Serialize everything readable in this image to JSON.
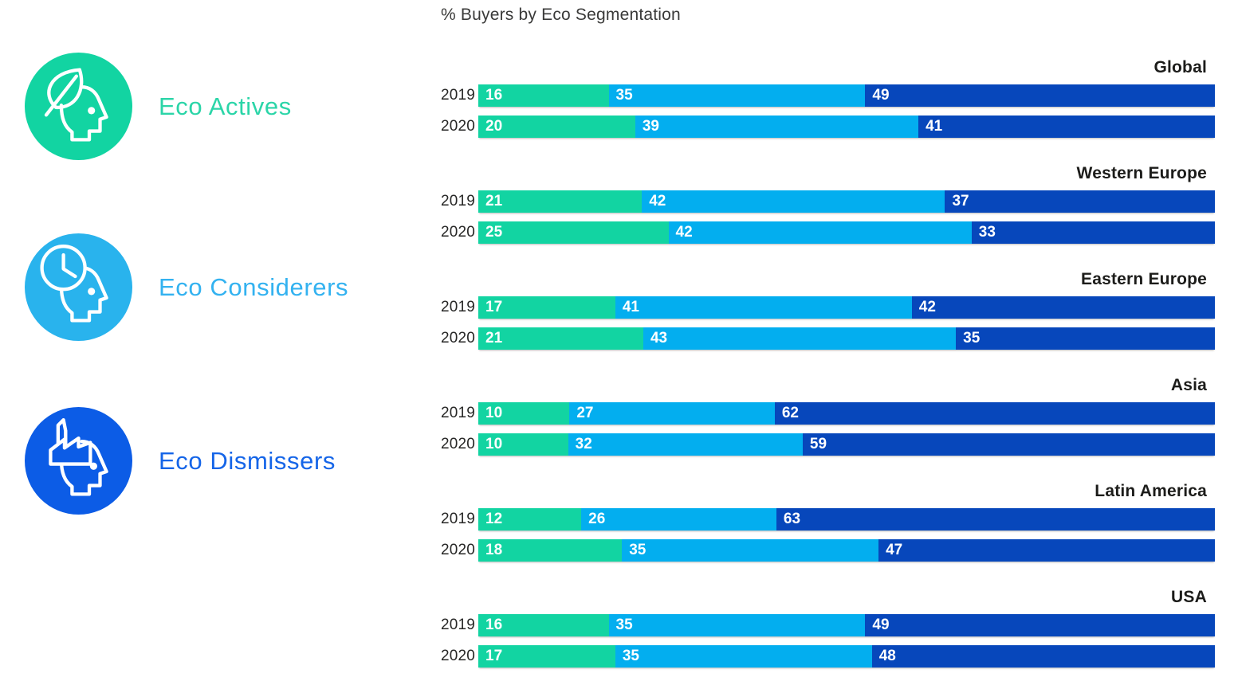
{
  "legend": {
    "items": [
      {
        "id": "eco-actives",
        "label": "Eco Actives",
        "circle_color": "#12D4A2",
        "text_color": "#2BD5A8",
        "icon": "leaf-head-icon"
      },
      {
        "id": "eco-considerers",
        "label": "Eco Considerers",
        "circle_color": "#29B3ED",
        "text_color": "#33B2F0",
        "icon": "clock-head-icon"
      },
      {
        "id": "eco-dismissers",
        "label": "Eco Dismissers",
        "circle_color": "#0C5CE6",
        "text_color": "#1565E8",
        "icon": "factory-head-icon"
      }
    ]
  },
  "chart_data": {
    "type": "bar",
    "orientation": "horizontal",
    "stacked": true,
    "title": "% Buyers by Eco Segmentation",
    "unit": "percent",
    "grid": false,
    "legend_position": "left",
    "segments": [
      "Eco Actives",
      "Eco Considerers",
      "Eco Dismissers"
    ],
    "segment_colors": [
      "#12D4A2",
      "#03AEEF",
      "#0747BB"
    ],
    "groups": [
      {
        "region": "Global",
        "rows": [
          {
            "year": "2019",
            "values": [
              16,
              35,
              49
            ]
          },
          {
            "year": "2020",
            "values": [
              20,
              39,
              41
            ]
          }
        ]
      },
      {
        "region": "Western Europe",
        "rows": [
          {
            "year": "2019",
            "values": [
              21,
              42,
              37
            ]
          },
          {
            "year": "2020",
            "values": [
              25,
              42,
              33
            ]
          }
        ]
      },
      {
        "region": "Eastern Europe",
        "rows": [
          {
            "year": "2019",
            "values": [
              17,
              41,
              42
            ]
          },
          {
            "year": "2020",
            "values": [
              21,
              43,
              35
            ]
          }
        ]
      },
      {
        "region": "Asia",
        "rows": [
          {
            "year": "2019",
            "values": [
              10,
              27,
              62
            ]
          },
          {
            "year": "2020",
            "values": [
              10,
              32,
              59
            ]
          }
        ]
      },
      {
        "region": "Latin America",
        "rows": [
          {
            "year": "2019",
            "values": [
              12,
              26,
              63
            ]
          },
          {
            "year": "2020",
            "values": [
              18,
              35,
              47
            ]
          }
        ]
      },
      {
        "region": "USA",
        "rows": [
          {
            "year": "2019",
            "values": [
              16,
              35,
              49
            ]
          },
          {
            "year": "2020",
            "values": [
              17,
              35,
              48
            ]
          }
        ]
      }
    ]
  }
}
